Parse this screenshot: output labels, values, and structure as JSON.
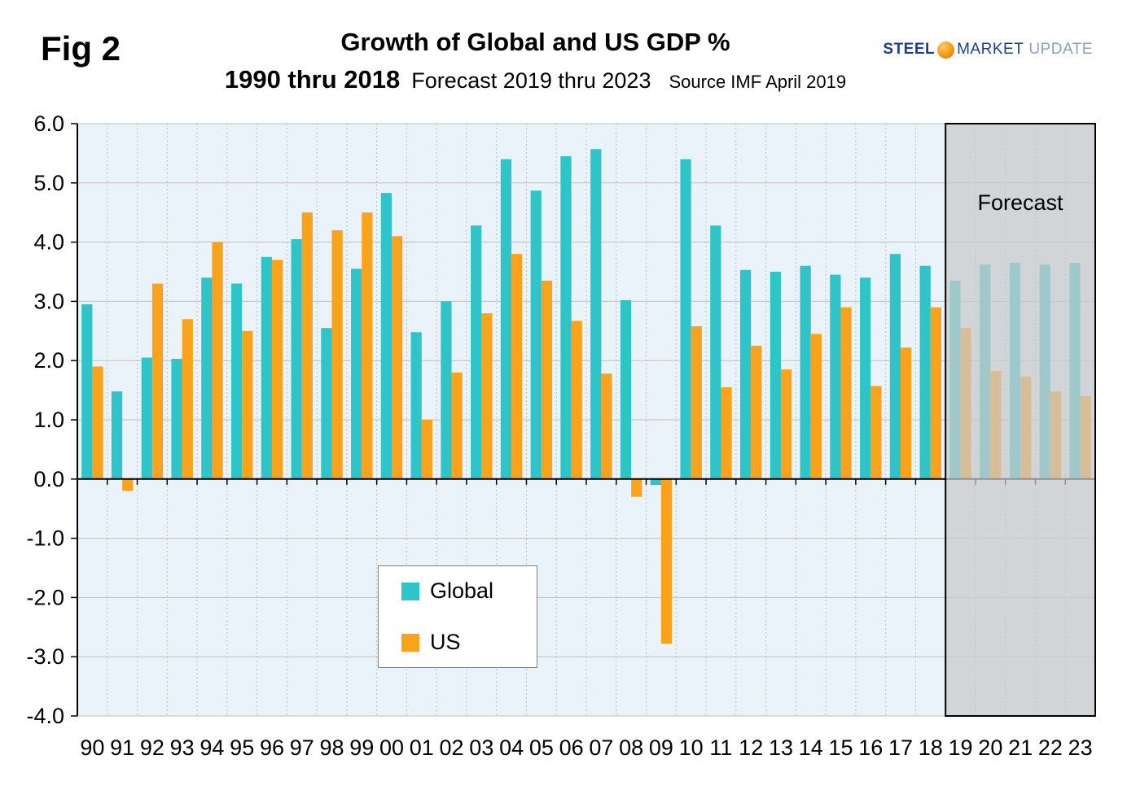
{
  "fig_label": "Fig 2",
  "header": {
    "title": "Growth of Global and US GDP %",
    "subtitle_bold": "1990 thru 2018",
    "subtitle_forecast": "Forecast 2019 thru 2023",
    "source": "Source IMF April 2019"
  },
  "logo": {
    "steel": "STEEL",
    "market": "MARKET",
    "update": "UPDATE",
    "navy": "#1d3d91",
    "light_blue": "#8fa0bd",
    "orange": "#f39c12"
  },
  "forecast_region_label": "Forecast",
  "chart_data": {
    "type": "bar",
    "title": "Growth of Global and US GDP %",
    "categories": [
      "90",
      "91",
      "92",
      "93",
      "94",
      "95",
      "96",
      "97",
      "98",
      "99",
      "00",
      "01",
      "02",
      "03",
      "04",
      "05",
      "06",
      "07",
      "08",
      "09",
      "10",
      "11",
      "12",
      "13",
      "14",
      "15",
      "16",
      "17",
      "18",
      "19",
      "20",
      "21",
      "22",
      "23"
    ],
    "series": [
      {
        "name": "Global",
        "color": "#2fc5c8",
        "values": [
          2.95,
          1.48,
          2.05,
          2.03,
          3.4,
          3.3,
          3.75,
          4.05,
          2.55,
          3.55,
          4.83,
          2.48,
          3.0,
          4.28,
          5.4,
          4.87,
          5.45,
          5.57,
          3.02,
          -0.1,
          5.4,
          4.28,
          3.53,
          3.5,
          3.6,
          3.45,
          3.4,
          3.8,
          3.6,
          3.35,
          3.62,
          3.65,
          3.62,
          3.65
        ]
      },
      {
        "name": "US",
        "color": "#f9a21b",
        "values": [
          1.9,
          -0.2,
          3.3,
          2.7,
          4.0,
          2.5,
          3.7,
          4.5,
          4.2,
          4.5,
          4.1,
          1.0,
          1.8,
          2.8,
          3.8,
          3.35,
          2.67,
          1.78,
          -0.3,
          -2.78,
          2.58,
          1.55,
          2.25,
          1.85,
          2.45,
          2.9,
          1.57,
          2.22,
          2.9,
          2.55,
          1.82,
          1.73,
          1.48,
          1.4
        ]
      }
    ],
    "ylim": [
      -4.0,
      6.0
    ],
    "ytick_step": 1.0,
    "grid": true,
    "plot_bg": "#e9f3f9",
    "gridline_color": "#bfbfbf",
    "axis_color": "#000000",
    "forecast": {
      "start_category": "19",
      "label": "Forecast",
      "overlay_color": "#c9c9c9",
      "overlay_opacity": 0.72
    },
    "legend_position": "inside-bottom-left"
  }
}
